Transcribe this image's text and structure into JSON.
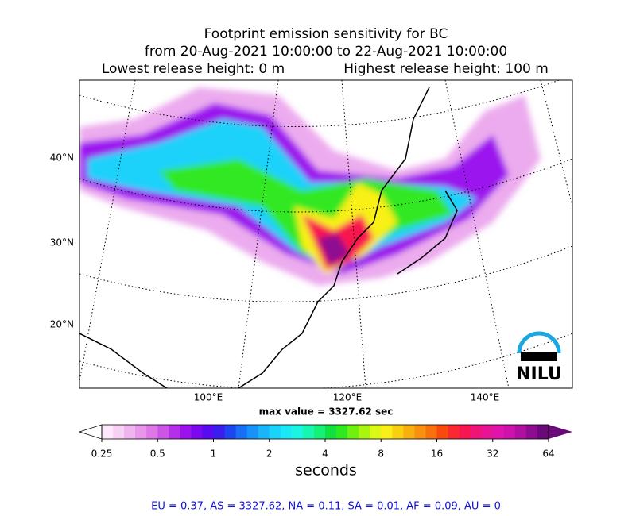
{
  "title": {
    "line1": "Footprint emission sensitivity for BC",
    "line2": "from 20-Aug-2021 10:00:00 to 22-Aug-2021 10:00:00",
    "lowest": "Lowest release height: 0 m",
    "highest": "Highest release height: 100 m"
  },
  "map": {
    "lat_labels": [
      "40°N",
      "30°N",
      "20°N"
    ],
    "lon_labels": [
      "100°E",
      "120°E",
      "140°E"
    ],
    "max_value": "max value = 3327.62 sec",
    "logo": "NILU"
  },
  "colorbar": {
    "ticks": [
      0.25,
      0.5,
      1,
      2,
      4,
      8,
      16,
      32,
      64
    ],
    "label": "seconds",
    "colors": [
      "#fde9fb",
      "#f7d0f5",
      "#f0b4ef",
      "#e796ea",
      "#dc78e6",
      "#cc55e6",
      "#b52ee8",
      "#9b12ee",
      "#7a08f0",
      "#5a0af0",
      "#3a1ef0",
      "#1c46f0",
      "#1a6ef5",
      "#1992f7",
      "#19b4f9",
      "#1ad2fa",
      "#1be8f5",
      "#19f5e0",
      "#18f5b0",
      "#14f078",
      "#10e040",
      "#30e820",
      "#70f010",
      "#a8f510",
      "#dcf815",
      "#f8f018",
      "#f8d010",
      "#f8b010",
      "#f89010",
      "#f87010",
      "#f84a10",
      "#f82a30",
      "#f81650",
      "#f01478",
      "#e81496",
      "#e014aa",
      "#cc12a8",
      "#b010a0",
      "#8e0c90",
      "#6a0a78"
    ]
  },
  "footer": "EU = 0.37,  AS = 3327.62,  NA = 0.11,  SA = 0.01,  AF = 0.09,  AU = 0"
}
